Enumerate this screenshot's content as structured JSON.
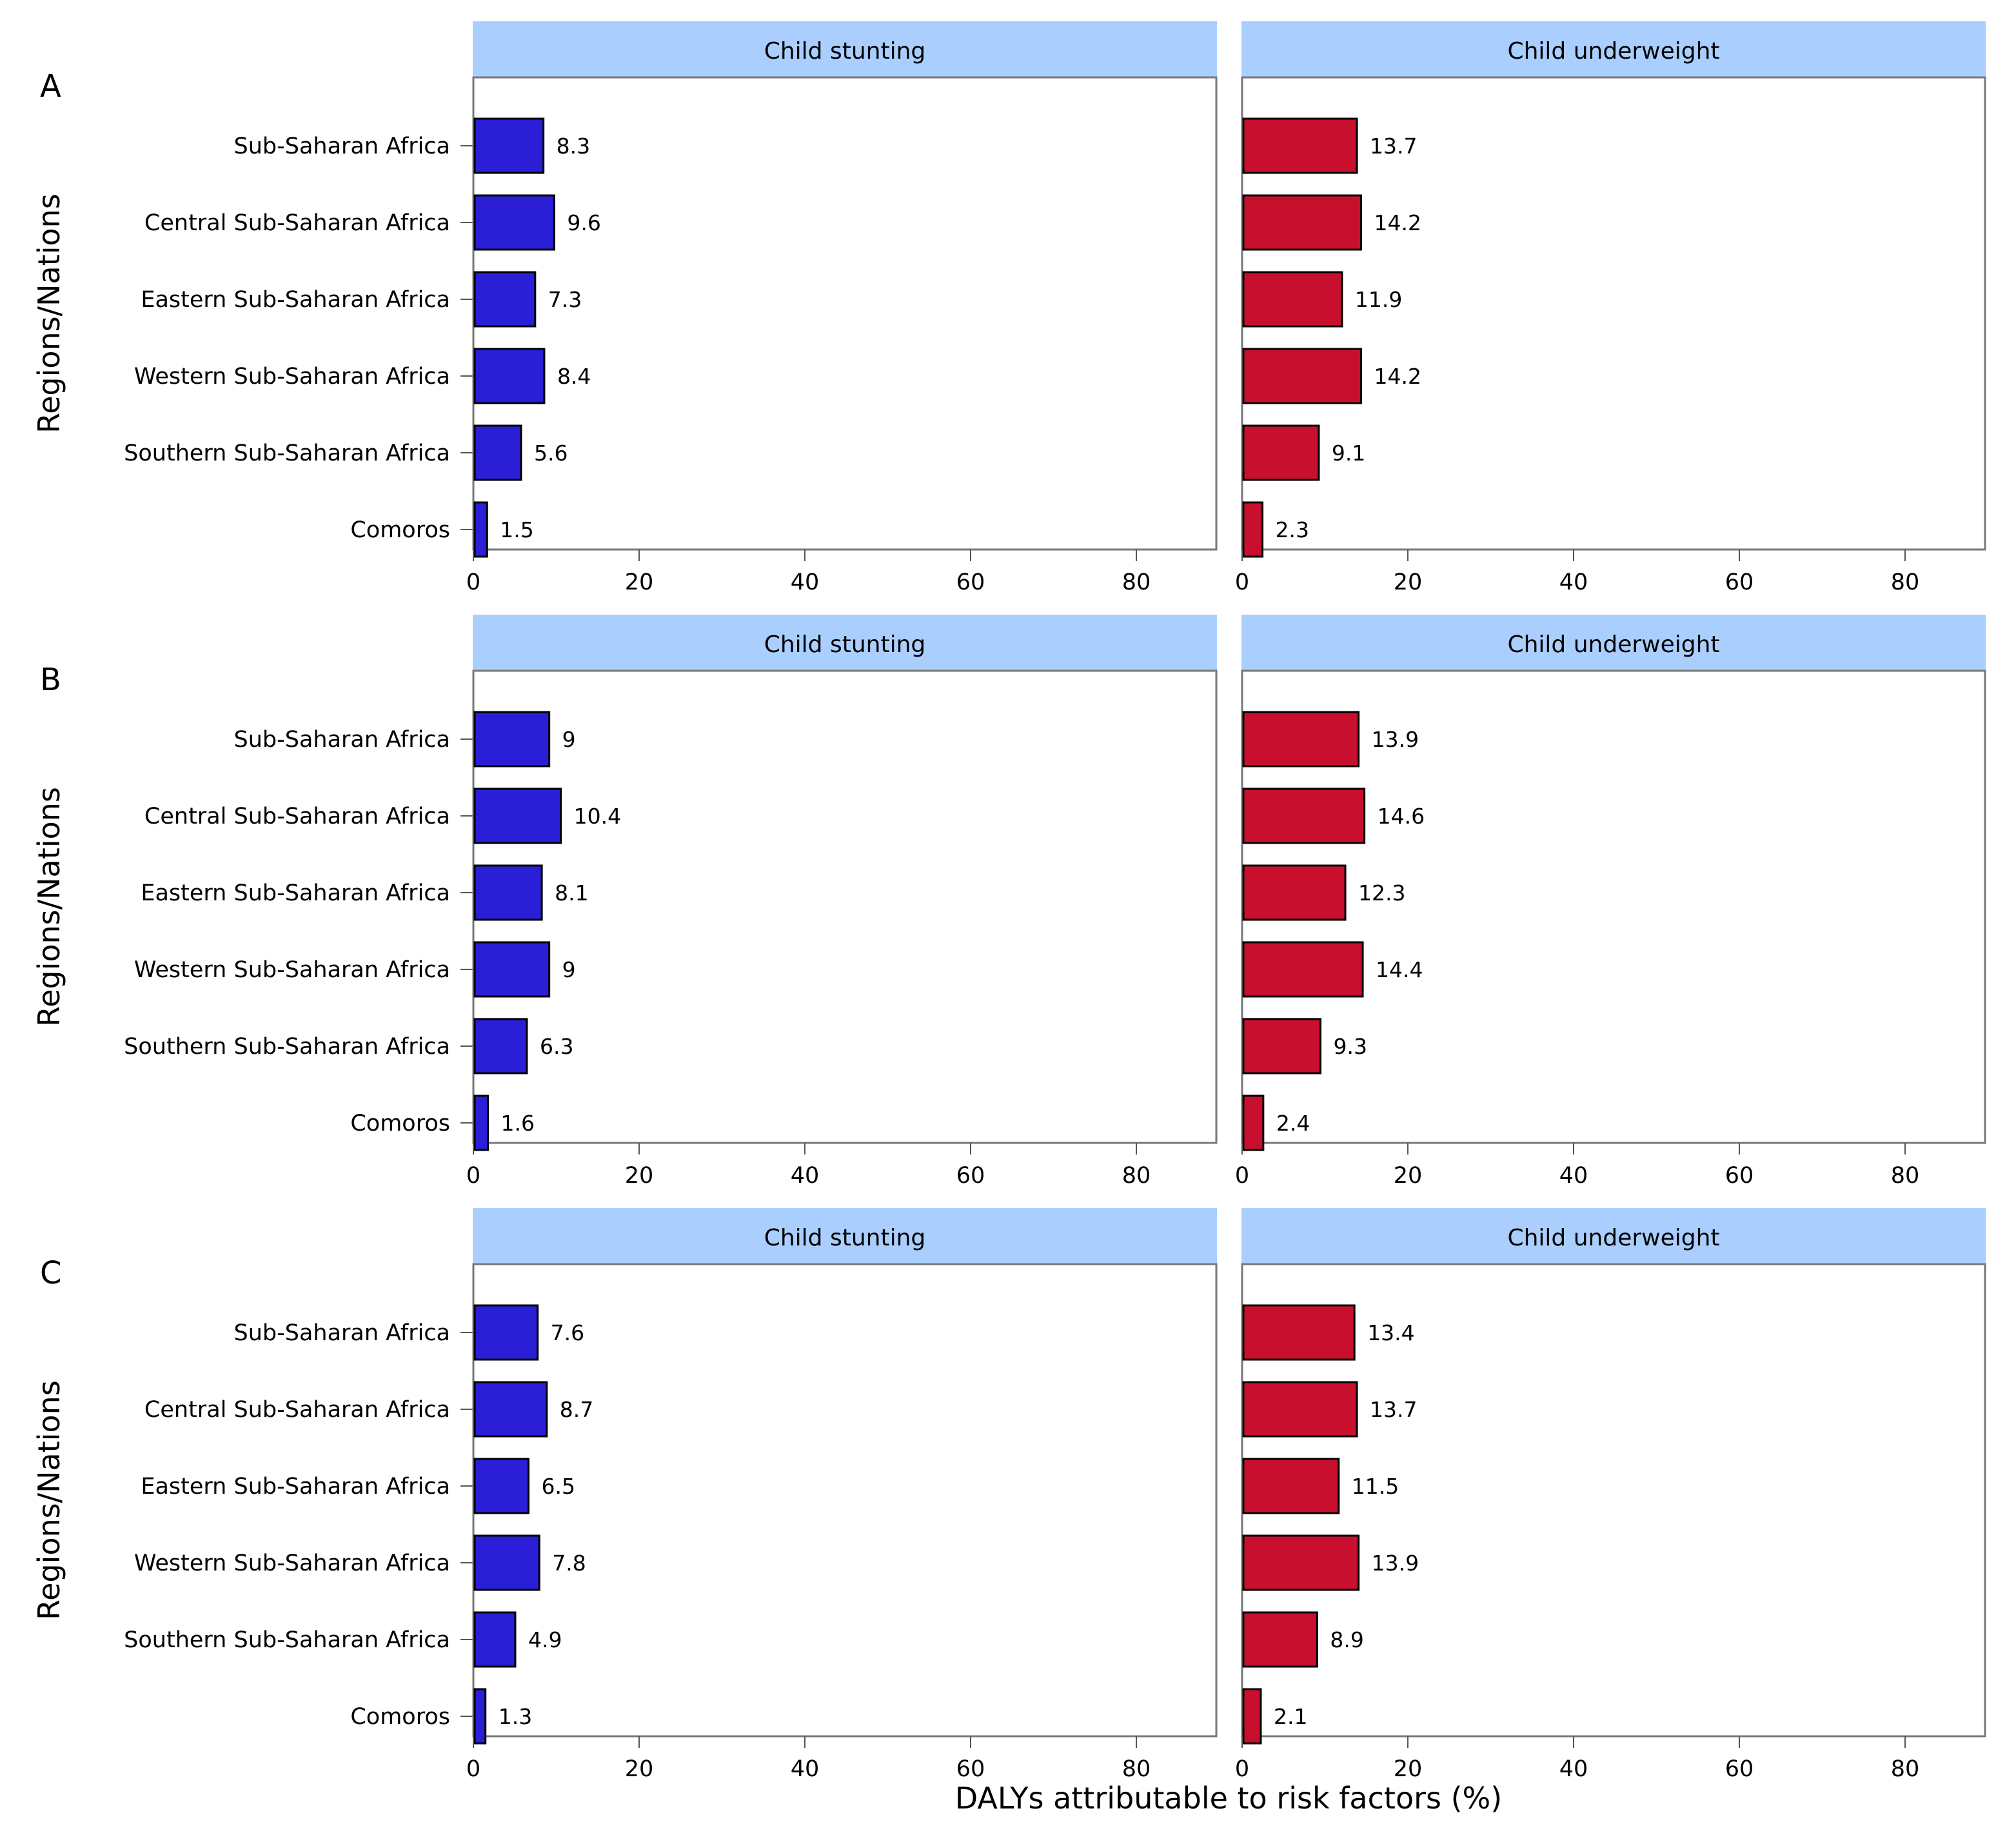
{
  "chart_data": {
    "type": "bar",
    "orientation": "horizontal",
    "xlabel": "DALYs attributable to risk factors (%)",
    "ylabel": "Regions/Nations",
    "xlim": [
      0,
      90
    ],
    "xticks": [
      0,
      20,
      40,
      60,
      80
    ],
    "categories": [
      "Sub-Saharan Africa",
      "Central Sub-Saharan Africa",
      "Eastern Sub-Saharan Africa",
      "Western Sub-Saharan Africa",
      "Southern Sub-Saharan Africa",
      "Comoros"
    ],
    "facets": [
      "Child stunting",
      "Child underweight"
    ],
    "colors": {
      "Child stunting": "#2a1fd6",
      "Child underweight": "#c8102e",
      "strip": "#aacfff"
    },
    "panels": [
      {
        "label": "A",
        "series": [
          {
            "name": "Child stunting",
            "values": [
              8.3,
              9.6,
              7.3,
              8.4,
              5.6,
              1.5
            ]
          },
          {
            "name": "Child underweight",
            "values": [
              13.7,
              14.2,
              11.9,
              14.2,
              9.1,
              2.3
            ]
          }
        ]
      },
      {
        "label": "B",
        "series": [
          {
            "name": "Child stunting",
            "values": [
              9,
              10.4,
              8.1,
              9,
              6.3,
              1.6
            ]
          },
          {
            "name": "Child underweight",
            "values": [
              13.9,
              14.6,
              12.3,
              14.4,
              9.3,
              2.4
            ]
          }
        ]
      },
      {
        "label": "C",
        "series": [
          {
            "name": "Child stunting",
            "values": [
              7.6,
              8.7,
              6.5,
              7.8,
              4.9,
              1.3
            ]
          },
          {
            "name": "Child underweight",
            "values": [
              13.4,
              13.7,
              11.5,
              13.9,
              8.9,
              2.1
            ]
          }
        ]
      }
    ]
  }
}
